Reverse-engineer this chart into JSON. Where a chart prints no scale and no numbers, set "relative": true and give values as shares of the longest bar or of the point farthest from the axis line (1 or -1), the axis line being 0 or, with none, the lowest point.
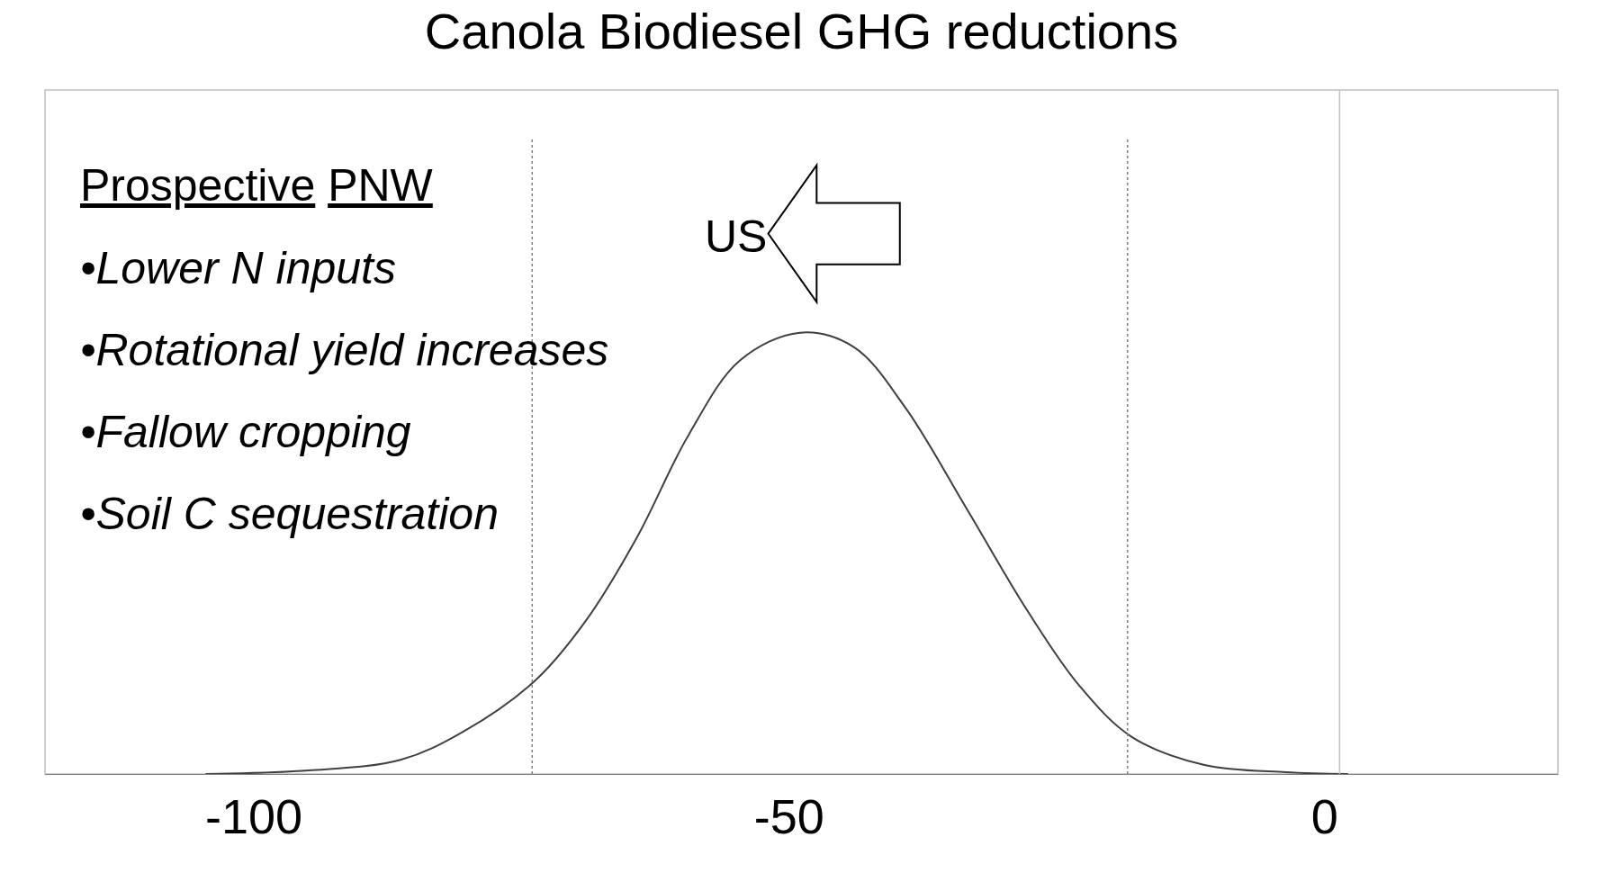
{
  "chart_data": {
    "type": "line",
    "title": "Canola Biodiesel GHG reductions",
    "relative": true,
    "color": "#404040",
    "line_style": "solid",
    "marker": "none",
    "grid": false,
    "legend": false,
    "x": [
      -104.5,
      -94.9,
      -86.3,
      -80.5,
      -73.8,
      -69,
      -64.2,
      -59.4,
      -54.6,
      -49,
      -44,
      -39.2,
      -33.4,
      -27.7,
      -22.9,
      -18,
      -11.3,
      -3.6,
      2.2
    ],
    "values": [
      0,
      0.008,
      0.032,
      0.095,
      0.21,
      0.347,
      0.537,
      0.768,
      0.937,
      1.0,
      0.968,
      0.832,
      0.6,
      0.368,
      0.2,
      0.084,
      0.021,
      0.004,
      0
    ],
    "xlim": [
      -119.5,
      21.8
    ],
    "xticks": [
      -100,
      -50,
      0
    ],
    "ref_lines": [
      {
        "axis": "x",
        "value": -74,
        "line_style": "dotted",
        "color": "#808080"
      },
      {
        "axis": "x",
        "value": -18.4,
        "line_style": "dotted",
        "color": "#808080"
      },
      {
        "axis": "x",
        "value": 1.4,
        "line_style": "solid",
        "color": "#c0c0c0"
      }
    ],
    "annotations": [
      "Prospective PNW",
      "•Lower N inputs",
      "•Rotational yield increases",
      "•Fallow cropping",
      "•Soil C sequestration",
      "US"
    ]
  }
}
